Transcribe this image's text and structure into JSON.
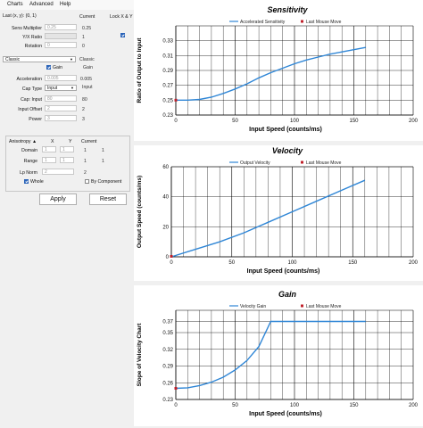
{
  "menu": [
    "Charts",
    "Advanced",
    "Help"
  ],
  "panel": {
    "last_label": "Last (x, y): (0, 1)",
    "current_header": "Current",
    "lock_label": "Lock X & Y",
    "sens_multiplier": {
      "label": "Sens Multiplier",
      "value": "0.25",
      "current": "0.25"
    },
    "yx_ratio": {
      "label": "Y/X Ratio",
      "current": "1"
    },
    "rotation": {
      "label": "Rotation",
      "value": "0",
      "current": "0"
    },
    "accel_select": "Classic",
    "accel_current": "Classic",
    "gain": {
      "label": "Gain",
      "current": "Gain"
    },
    "acceleration": {
      "label": "Acceleration",
      "value": "0.005",
      "current": "0.005"
    },
    "cap_type": {
      "label": "Cap Type",
      "value": "Input",
      "current": "Input"
    },
    "input_cap": {
      "label": "Cap: Input",
      "value": "80",
      "current": "80"
    },
    "input_offset": {
      "label": "Input Offset",
      "value": "2",
      "current": "2"
    },
    "power": {
      "label": "Power",
      "value": "3",
      "current": "3"
    },
    "anisotropy": {
      "title": "Anisotropy",
      "col_x": "X",
      "col_y": "Y",
      "col_current": "Current",
      "domain": {
        "label": "Domain",
        "x": "1",
        "y": "1",
        "cx": "1",
        "cy": "1"
      },
      "range": {
        "label": "Range",
        "x": "1",
        "y": "1",
        "cx": "1",
        "cy": "1"
      },
      "lp_norm": {
        "label": "Lp Norm",
        "value": "2",
        "current": "2"
      },
      "whole": "Whole",
      "by_component": "By Component"
    },
    "apply": "Apply",
    "reset": "Reset"
  },
  "colors": {
    "line": "#2f86d6",
    "marker": "#c0202a",
    "grid": "#000000"
  },
  "chart_data": [
    {
      "type": "line",
      "title": "Sensitivity",
      "xlabel": "Input Speed (counts/ms)",
      "ylabel": "Ratio of Output to Input",
      "legend": [
        "Accelerated Sensitivity",
        "Last Mouse Move"
      ],
      "xlim": [
        0,
        200
      ],
      "ylim": [
        0.23,
        0.35
      ],
      "xticks": [
        0,
        50,
        100,
        150,
        200
      ],
      "yticks": [
        0.23,
        0.25,
        0.27,
        0.29,
        0.31,
        0.33
      ],
      "xtick_labels": [
        "0",
        "50",
        "100",
        "150",
        "200"
      ],
      "ytick_labels": [
        "0.23",
        "0.25",
        "0.27",
        "0.29",
        "0.31",
        "0.33"
      ],
      "x": [
        0,
        10,
        20,
        30,
        40,
        50,
        60,
        70,
        80,
        90,
        100,
        110,
        120,
        130,
        140,
        150,
        160
      ],
      "y": [
        0.25,
        0.25,
        0.251,
        0.254,
        0.259,
        0.265,
        0.272,
        0.28,
        0.287,
        0.293,
        0.299,
        0.304,
        0.308,
        0.312,
        0.315,
        0.318,
        0.321
      ],
      "last_move": [
        0,
        0.25
      ]
    },
    {
      "type": "line",
      "title": "Velocity",
      "xlabel": "Input Speed (counts/ms)",
      "ylabel": "Output Speed (counts/ms)",
      "legend": [
        "Output Velocity",
        "Last Mouse Move"
      ],
      "xlim": [
        0,
        200
      ],
      "ylim": [
        0,
        60
      ],
      "xticks": [
        0,
        50,
        100,
        150,
        200
      ],
      "yticks": [
        0,
        20,
        40,
        60
      ],
      "xtick_labels": [
        "0",
        "50",
        "100",
        "150",
        "200"
      ],
      "ytick_labels": [
        "0",
        "20",
        "40",
        "60"
      ],
      "x": [
        0,
        20,
        40,
        60,
        80,
        100,
        120,
        140,
        160
      ],
      "y": [
        0,
        5,
        10,
        16,
        23,
        30,
        37,
        44,
        51
      ],
      "last_move": [
        0,
        0.3
      ]
    },
    {
      "type": "line",
      "title": "Gain",
      "xlabel": "Input Speed (counts/ms)",
      "ylabel": "Slope of Velocity Chart",
      "legend": [
        "Velocity Gain",
        "Last Mouse Move"
      ],
      "xlim": [
        0,
        200
      ],
      "ylim": [
        0.23,
        0.39
      ],
      "xticks": [
        0,
        50,
        100,
        150,
        200
      ],
      "yticks": [
        0.23,
        0.26,
        0.29,
        0.32,
        0.35,
        0.37
      ],
      "xtick_labels": [
        "0",
        "50",
        "100",
        "150",
        "200"
      ],
      "ytick_labels": [
        "0.23",
        "0.26",
        "0.29",
        "0.32",
        "0.35",
        "0.37"
      ],
      "x": [
        0,
        10,
        20,
        30,
        40,
        50,
        60,
        70,
        80,
        90,
        100,
        120,
        140,
        160
      ],
      "y": [
        0.25,
        0.251,
        0.255,
        0.261,
        0.27,
        0.283,
        0.3,
        0.325,
        0.37,
        0.37,
        0.37,
        0.37,
        0.37,
        0.37
      ],
      "last_move": [
        0,
        0.25
      ]
    }
  ]
}
